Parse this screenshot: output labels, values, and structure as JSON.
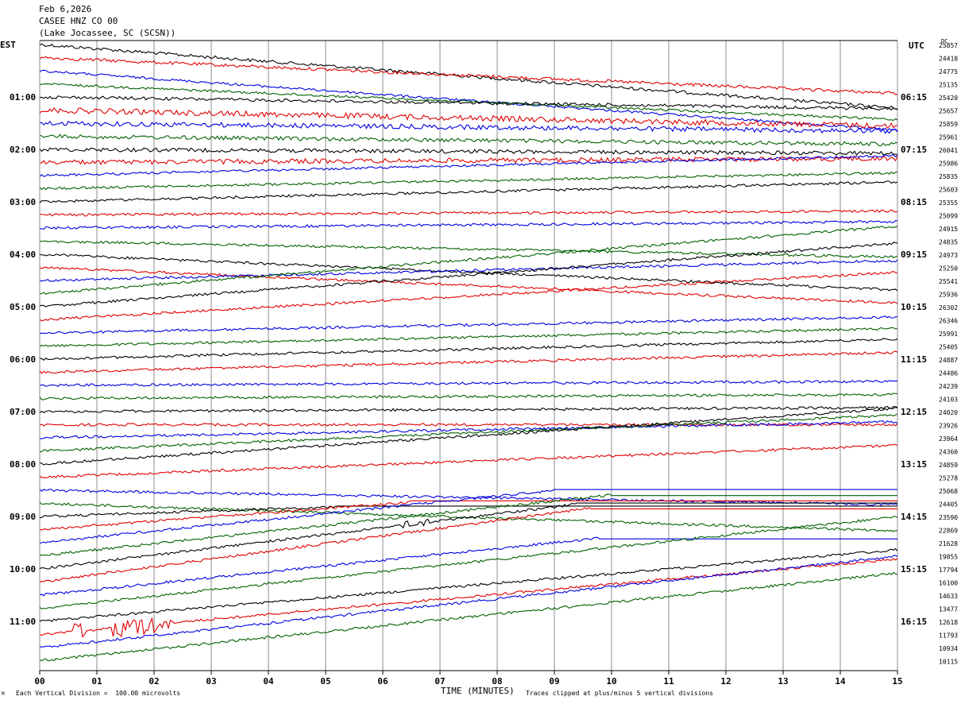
{
  "header": {
    "date": "Feb 6,2026",
    "station": "CASEE HNZ CO 00",
    "location": "(Lake Jocassee, SC (SCSN))"
  },
  "labels": {
    "left_tz": "EST",
    "right_tz": "UTC",
    "dc": "DC",
    "x_title": "TIME (MINUTES)",
    "footer_left": "Each Vertical Division =  100.00 microvolts",
    "footer_right": "Traces clipped at plus/minus 5 vertical divisions",
    "corner_mark": "M"
  },
  "colors": {
    "trace_cycle": [
      "#000000",
      "#e00000",
      "#0000e0",
      "#006000"
    ],
    "grid": "#000000"
  },
  "chart_data": {
    "type": "line",
    "xlabel": "TIME (MINUTES)",
    "xlim": [
      0,
      15
    ],
    "x_ticks": [
      "00",
      "01",
      "02",
      "03",
      "04",
      "05",
      "06",
      "07",
      "08",
      "09",
      "10",
      "11",
      "12",
      "13",
      "14",
      "15"
    ],
    "left_time_labels": [
      "01:00",
      "02:00",
      "03:00",
      "04:00",
      "05:00",
      "06:00",
      "07:00",
      "08:00",
      "09:00",
      "10:00",
      "11:00"
    ],
    "right_time_labels": [
      "06:15",
      "07:15",
      "08:15",
      "09:15",
      "10:15",
      "11:15",
      "12:15",
      "13:15",
      "14:15",
      "15:15",
      "16:15"
    ],
    "dc_values": [
      25857,
      24418,
      24775,
      25135,
      25420,
      25657,
      25859,
      25961,
      26041,
      25986,
      25835,
      25603,
      25355,
      25099,
      24915,
      24835,
      24973,
      25250,
      25541,
      25936,
      26302,
      26346,
      25991,
      25405,
      24887,
      24486,
      24239,
      24103,
      24020,
      23926,
      23964,
      24360,
      24859,
      25278,
      25068,
      24405,
      23590,
      22869,
      21628,
      19855,
      17794,
      16100,
      14633,
      13477,
      12618,
      11793,
      10934,
      10115
    ],
    "trace_interval_minutes": 15,
    "traces_per_hour": 4,
    "num_traces": 48,
    "amplitude_units": "microvolts",
    "vertical_division_microvolts": 100.0,
    "clip_divisions": 5
  }
}
